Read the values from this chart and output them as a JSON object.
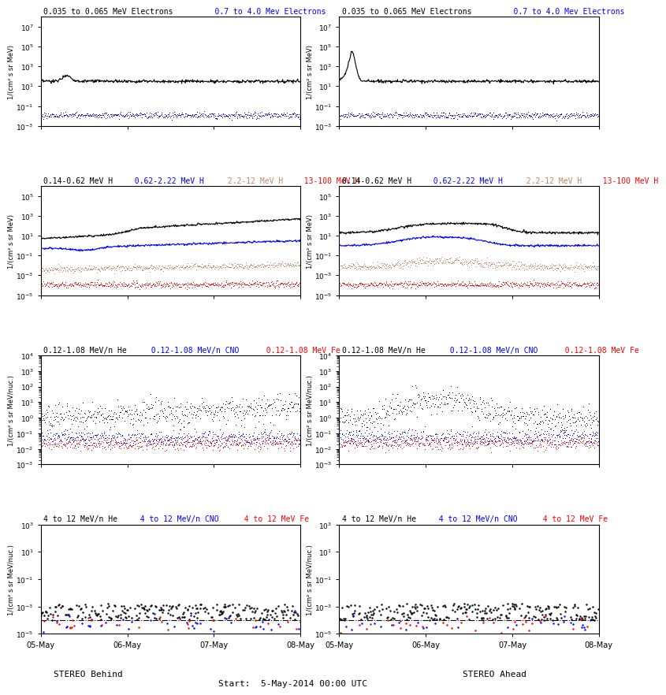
{
  "title_center": "Start:  5-May-2014 00:00 UTC",
  "title_left": "STEREO Behind",
  "title_right": "STEREO Ahead",
  "x_tick_labels": [
    "05-May",
    "06-May",
    "07-May",
    "08-May"
  ],
  "panels": [
    {
      "row": 0,
      "col": 0,
      "title_parts": [
        {
          "text": "0.035 to 0.065 MeV Electrons",
          "color": "black"
        },
        {
          "text": "    0.7 to 4.0 Mev Electrons",
          "color": "blue"
        }
      ],
      "ylabel": "1/(cm² s sr MeV)",
      "ylim": [
        0.001,
        100000000.0
      ],
      "series": [
        {
          "color": "black",
          "style": "line",
          "base": 1.5,
          "shape": "elec_behind_black"
        },
        {
          "color": "blue",
          "style": "dots",
          "base": -2.0,
          "shape": "flat_noisy"
        }
      ]
    },
    {
      "row": 0,
      "col": 1,
      "title_parts": [
        {
          "text": "0.035 to 0.065 MeV Electrons",
          "color": "black"
        },
        {
          "text": "    0.7 to 4.0 Mev Electrons",
          "color": "blue"
        }
      ],
      "ylabel": "1/(cm² s sr MeV)",
      "ylim": [
        0.001,
        100000000.0
      ],
      "series": [
        {
          "color": "black",
          "style": "line",
          "base": 1.5,
          "shape": "elec_ahead_black"
        },
        {
          "color": "blue",
          "style": "dots",
          "base": -2.0,
          "shape": "flat_noisy"
        }
      ]
    },
    {
      "row": 1,
      "col": 0,
      "title_parts": [
        {
          "text": "0.14-0.62 MeV H",
          "color": "black"
        },
        {
          "text": "  0.62-2.22 MeV H",
          "color": "blue"
        },
        {
          "text": "  2.2-12 MeV H",
          "color": "#bc8a6a"
        },
        {
          "text": "  13-100 MeV H",
          "color": "red"
        }
      ],
      "ylabel": "1/(cm² s sr MeV)",
      "ylim": [
        1e-05,
        1000000.0
      ],
      "series": [
        {
          "color": "black",
          "style": "line",
          "base": 0.7,
          "shape": "H_behind_black"
        },
        {
          "color": "blue",
          "style": "line",
          "base": -0.3,
          "shape": "H_behind_blue"
        },
        {
          "color": "#bc8a6a",
          "style": "dots",
          "base": -2.5,
          "shape": "H_behind_brown"
        },
        {
          "color": "red",
          "style": "dots",
          "base": -4.0,
          "shape": "flat_noisy_red"
        }
      ]
    },
    {
      "row": 1,
      "col": 1,
      "title_parts": [
        {
          "text": "0.14-0.62 MeV H",
          "color": "black"
        },
        {
          "text": "  0.62-2.22 MeV H",
          "color": "blue"
        },
        {
          "text": "  2.2-12 MeV H",
          "color": "#bc8a6a"
        },
        {
          "text": "  13-100 MeV H",
          "color": "red"
        }
      ],
      "ylabel": "1/(cm² s sr MeV)",
      "ylim": [
        1e-05,
        1000000.0
      ],
      "series": [
        {
          "color": "black",
          "style": "line",
          "base": 1.3,
          "shape": "H_ahead_black"
        },
        {
          "color": "blue",
          "style": "line",
          "base": 0.0,
          "shape": "H_ahead_blue"
        },
        {
          "color": "#bc8a6a",
          "style": "dots",
          "base": -2.2,
          "shape": "H_ahead_brown"
        },
        {
          "color": "red",
          "style": "dots",
          "base": -4.0,
          "shape": "flat_noisy_red"
        }
      ]
    },
    {
      "row": 2,
      "col": 0,
      "title_parts": [
        {
          "text": "0.12-1.08 MeV/n He",
          "color": "black"
        },
        {
          "text": "  0.12-1.08 MeV/n CNO",
          "color": "blue"
        },
        {
          "text": "  0.12-1.08 MeV Fe",
          "color": "red"
        }
      ],
      "ylabel": "1/(cm² s sr MeV/nuc.)",
      "ylim": [
        0.001,
        10000.0
      ],
      "series": [
        {
          "color": "black",
          "style": "dots",
          "base": -0.1,
          "shape": "He_behind_black"
        },
        {
          "color": "blue",
          "style": "dots",
          "base": -1.3,
          "shape": "He_behind_blue"
        },
        {
          "color": "red",
          "style": "dots",
          "base": -1.7,
          "shape": "He_behind_red"
        }
      ]
    },
    {
      "row": 2,
      "col": 1,
      "title_parts": [
        {
          "text": "0.12-1.08 MeV/n He",
          "color": "black"
        },
        {
          "text": "  0.12-1.08 MeV/n CNO",
          "color": "blue"
        },
        {
          "text": "  0.12-1.08 MeV Fe",
          "color": "red"
        }
      ],
      "ylabel": "1/(cm² s sr MeV/nuc.)",
      "ylim": [
        0.001,
        10000.0
      ],
      "series": [
        {
          "color": "black",
          "style": "dots",
          "base": -0.1,
          "shape": "He_ahead_black"
        },
        {
          "color": "blue",
          "style": "dots",
          "base": -1.3,
          "shape": "He_ahead_blue"
        },
        {
          "color": "red",
          "style": "dots",
          "base": -1.7,
          "shape": "He_ahead_red"
        }
      ]
    },
    {
      "row": 3,
      "col": 0,
      "title_parts": [
        {
          "text": "4 to 12 MeV/n He",
          "color": "black"
        },
        {
          "text": "  4 to 12 MeV/n CNO",
          "color": "blue"
        },
        {
          "text": "  4 to 12 MeV Fe",
          "color": "red"
        }
      ],
      "ylabel": "1/(cm² s sr MeV/nuc.)",
      "ylim": [
        1e-05,
        1000.0
      ],
      "series": [
        {
          "color": "black",
          "style": "dashdot_sparse",
          "base": -4.0,
          "shape": "sparse_behind_black"
        },
        {
          "color": "blue",
          "style": "dots_very_sparse",
          "base": -4.3,
          "shape": "sparse_behind_blue"
        },
        {
          "color": "red",
          "style": "dots_very_sparse",
          "base": -4.3,
          "shape": "sparse_behind_red"
        }
      ]
    },
    {
      "row": 3,
      "col": 1,
      "title_parts": [
        {
          "text": "4 to 12 MeV/n He",
          "color": "black"
        },
        {
          "text": "  4 to 12 MeV/n CNO",
          "color": "blue"
        },
        {
          "text": "  4 to 12 MeV Fe",
          "color": "red"
        }
      ],
      "ylabel": "1/(cm² s sr MeV/nuc.)",
      "ylim": [
        1e-05,
        1000.0
      ],
      "series": [
        {
          "color": "black",
          "style": "dashdot_sparse",
          "base": -4.0,
          "shape": "sparse_ahead_black"
        },
        {
          "color": "blue",
          "style": "dots_very_sparse",
          "base": -4.3,
          "shape": "sparse_ahead_blue"
        },
        {
          "color": "red",
          "style": "dots_very_sparse",
          "base": -4.3,
          "shape": "sparse_ahead_red"
        }
      ]
    }
  ]
}
